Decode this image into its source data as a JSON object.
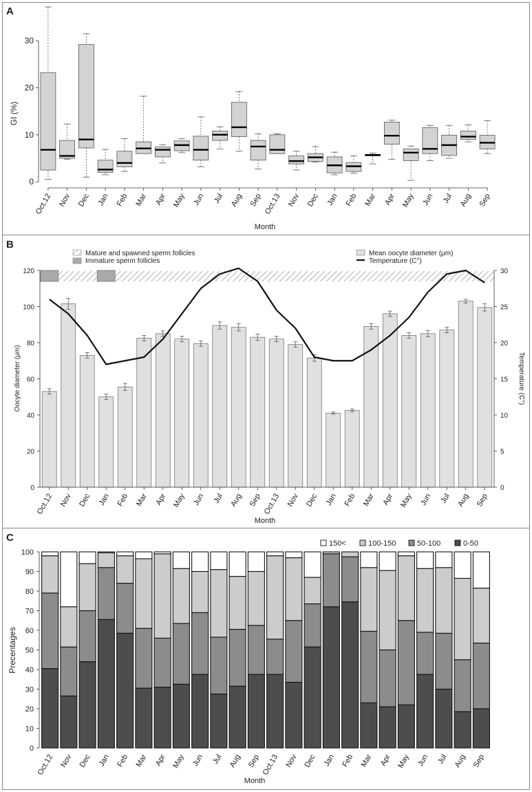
{
  "figure": {
    "panels": [
      "A",
      "B",
      "C"
    ],
    "months": [
      "Oct.12",
      "Nov",
      "Dec",
      "Jan",
      "Feb",
      "Mar",
      "Apr",
      "May",
      "Jun",
      "Jul",
      "Aug",
      "Sep",
      "Oct.13",
      "Nov",
      "Dec",
      "Jan",
      "Feb",
      "Mar",
      "Apr",
      "May",
      "Jun",
      "Jul",
      "Aug",
      "Sep"
    ]
  },
  "colors": {
    "box_fill": "#d3d3d3",
    "bar_fill": "#e0e0e0",
    "immature_fill": "#a9a9a9",
    "stack": [
      "#4d4d4d",
      "#8c8c8c",
      "#cccccc",
      "#ffffff"
    ]
  },
  "chart_data": [
    {
      "panel": "A",
      "type": "box",
      "xlabel": "Month",
      "ylabel": "GI (%)",
      "ylim": [
        -1,
        37.5
      ],
      "yticks": [
        0,
        10,
        20,
        30
      ],
      "grid": false,
      "boxes": [
        {
          "min": 0.5,
          "q1": 2.5,
          "median": 6.8,
          "q3": 23.2,
          "max": 37.2
        },
        {
          "min": 4.8,
          "q1": 5.0,
          "median": 5.5,
          "q3": 8.8,
          "max": 12.3
        },
        {
          "min": 1.0,
          "q1": 7.2,
          "median": 9.0,
          "q3": 29.2,
          "max": 31.5
        },
        {
          "min": 1.5,
          "q1": 2.0,
          "median": 2.6,
          "q3": 4.6,
          "max": 6.9
        },
        {
          "min": 2.2,
          "q1": 3.2,
          "median": 4.0,
          "q3": 6.5,
          "max": 9.2
        },
        {
          "min": 6.0,
          "q1": 6.0,
          "median": 7.1,
          "q3": 8.5,
          "max": 18.2
        },
        {
          "min": 4.0,
          "q1": 5.3,
          "median": 6.8,
          "q3": 7.4,
          "max": 7.9
        },
        {
          "min": 6.2,
          "q1": 6.6,
          "median": 7.8,
          "q3": 8.7,
          "max": 9.2
        },
        {
          "min": 3.2,
          "q1": 4.6,
          "median": 6.8,
          "q3": 9.7,
          "max": 13.8
        },
        {
          "min": 7.0,
          "q1": 8.8,
          "median": 10.0,
          "q3": 10.8,
          "max": 11.7
        },
        {
          "min": 6.5,
          "q1": 9.6,
          "median": 11.6,
          "q3": 16.9,
          "max": 19.2
        },
        {
          "min": 2.7,
          "q1": 4.6,
          "median": 7.5,
          "q3": 8.8,
          "max": 10.2
        },
        {
          "min": 6.0,
          "q1": 6.0,
          "median": 6.8,
          "q3": 10.0,
          "max": 10.2
        },
        {
          "min": 2.5,
          "q1": 3.8,
          "median": 4.4,
          "q3": 5.5,
          "max": 6.5
        },
        {
          "min": 4.2,
          "q1": 4.3,
          "median": 5.2,
          "q3": 6.0,
          "max": 7.5
        },
        {
          "min": 1.5,
          "q1": 1.9,
          "median": 3.5,
          "q3": 5.3,
          "max": 6.3
        },
        {
          "min": 1.8,
          "q1": 2.2,
          "median": 3.3,
          "q3": 4.1,
          "max": 5.5
        },
        {
          "min": 3.8,
          "q1": 5.5,
          "median": 5.7,
          "q3": 5.8,
          "max": 6.1
        },
        {
          "min": 4.8,
          "q1": 8.0,
          "median": 9.8,
          "q3": 12.7,
          "max": 13.1
        },
        {
          "min": 0.3,
          "q1": 4.5,
          "median": 6.2,
          "q3": 7.0,
          "max": 7.6
        },
        {
          "min": 4.5,
          "q1": 6.0,
          "median": 7.0,
          "q3": 11.5,
          "max": 12.0
        },
        {
          "min": 5.0,
          "q1": 5.6,
          "median": 7.8,
          "q3": 9.9,
          "max": 12.0
        },
        {
          "min": 8.5,
          "q1": 9.0,
          "median": 9.6,
          "q3": 10.8,
          "max": 12.1
        },
        {
          "min": 6.0,
          "q1": 7.0,
          "median": 8.3,
          "q3": 9.9,
          "max": 13.0
        }
      ]
    },
    {
      "panel": "B",
      "type": "bar+line",
      "xlabel": "Month",
      "ylabel": "Oocyte diameter (μm)",
      "ylabel_right": "Temperature (C°)",
      "ylim": [
        0,
        120
      ],
      "yticks": [
        0,
        20,
        40,
        60,
        80,
        100,
        120
      ],
      "ylim_right": [
        0,
        30
      ],
      "yticks_right": [
        0,
        5,
        10,
        15,
        20,
        25,
        30
      ],
      "grid": false,
      "legend": [
        "Mature and spawned sperm follicles",
        "Immature sperm follicles",
        "Mean oocyte diameter (μm)",
        "Temperature (C°)"
      ],
      "series": [
        {
          "name": "Mean oocyte diameter (μm)",
          "kind": "bar",
          "values": [
            53,
            101.5,
            73,
            50,
            55.5,
            82.5,
            85,
            82,
            79.5,
            89.5,
            88.5,
            83,
            82,
            79,
            71.5,
            41,
            42.5,
            89,
            96,
            84,
            85,
            87,
            103,
            99.5
          ],
          "errors": [
            1.5,
            3,
            1.5,
            1.5,
            2,
            1.5,
            1.5,
            1.5,
            1.5,
            2,
            2,
            1.8,
            1.5,
            1.5,
            1.8,
            0.6,
            0.8,
            1.5,
            1.5,
            1.5,
            1.8,
            1.5,
            1,
            2
          ]
        },
        {
          "name": "Temperature (C°)",
          "kind": "line",
          "values": [
            26,
            24,
            21,
            17,
            17.5,
            18,
            20.5,
            24,
            27.5,
            29.5,
            30.3,
            28.5,
            24.5,
            22,
            18,
            17.5,
            17.5,
            19,
            21,
            23.5,
            27,
            29.5,
            30,
            28.3
          ]
        }
      ],
      "follicle_strip": [
        {
          "start_month": 0,
          "end_month": 0,
          "state": "Immature sperm follicles"
        },
        {
          "start_month": 3,
          "end_month": 3,
          "state": "Immature sperm follicles"
        },
        {
          "start_month": 1,
          "end_month": 23,
          "state": "Mature and spawned sperm follicles"
        }
      ]
    },
    {
      "panel": "C",
      "type": "stacked-bar",
      "xlabel": "Month",
      "ylabel": "Precentages",
      "ylim": [
        0,
        100
      ],
      "yticks": [
        0,
        10,
        20,
        30,
        40,
        50,
        60,
        70,
        80,
        90,
        100
      ],
      "grid": false,
      "legend_placement": "top-right",
      "series": [
        {
          "name": "0-50",
          "values": [
            40.5,
            26.5,
            44,
            65.5,
            58.5,
            30.5,
            31,
            32.5,
            37.5,
            27.5,
            31.5,
            37.5,
            37.5,
            33.5,
            51.5,
            72,
            74.5,
            23,
            21,
            22,
            37.5,
            30,
            18.5,
            20
          ]
        },
        {
          "name": "50-100",
          "values": [
            38.5,
            25,
            26,
            26.5,
            25.5,
            30.5,
            25,
            31,
            31.5,
            29,
            29,
            25,
            18,
            31.5,
            22,
            27,
            23,
            36.5,
            29,
            43,
            21.5,
            28.5,
            26.5,
            33.5
          ]
        },
        {
          "name": "100-150",
          "values": [
            19,
            20.5,
            24,
            7.5,
            14,
            35.5,
            43,
            28,
            21,
            34.5,
            27,
            27.5,
            42.5,
            32,
            13.5,
            1,
            2.5,
            32.5,
            40.5,
            33,
            32.5,
            33.5,
            41.5,
            28
          ]
        },
        {
          "name": "150<",
          "values": [
            2,
            28,
            6,
            0.5,
            2,
            3.5,
            1,
            8.5,
            10,
            9,
            12.5,
            10,
            2,
            3,
            13,
            0,
            0,
            8,
            9.5,
            2,
            8.5,
            8,
            13.5,
            18.5
          ]
        }
      ]
    }
  ]
}
